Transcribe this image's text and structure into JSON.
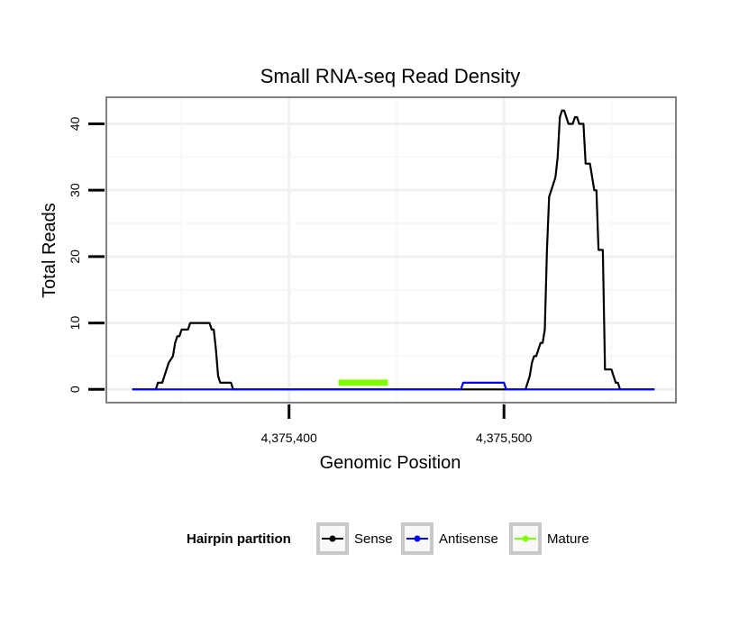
{
  "chart_data": {
    "type": "line",
    "title": "Small RNA-seq Read Density",
    "xlabel": "Genomic Position",
    "ylabel": "Total Reads",
    "xlim": [
      4375315,
      4375580
    ],
    "ylim": [
      -2,
      44
    ],
    "grid": true,
    "x_ticks": [
      {
        "value": 4375400,
        "label": "4,375,400"
      },
      {
        "value": 4375500,
        "label": "4,375,500"
      }
    ],
    "y_ticks": [
      {
        "value": 0,
        "label": "0"
      },
      {
        "value": 10,
        "label": "10"
      },
      {
        "value": 20,
        "label": "20"
      },
      {
        "value": 30,
        "label": "30"
      },
      {
        "value": 40,
        "label": "40"
      }
    ],
    "legend": {
      "title": "Hairpin partition",
      "position": "bottom"
    },
    "series": [
      {
        "name": "Sense",
        "color": "#000000",
        "x": [
          4375327,
          4375338,
          4375339,
          4375341,
          4375342,
          4375344,
          4375346,
          4375347,
          4375348,
          4375349,
          4375350,
          4375352,
          4375353,
          4375354,
          4375355,
          4375363,
          4375364,
          4375365,
          4375366,
          4375367,
          4375368,
          4375373,
          4375374,
          4375375,
          4375510,
          4375511,
          4375512,
          4375513,
          4375514,
          4375515,
          4375516,
          4375517,
          4375518,
          4375519,
          4375520,
          4375521,
          4375522,
          4375523,
          4375524,
          4375525,
          4375526,
          4375527,
          4375528,
          4375529,
          4375530,
          4375531,
          4375532,
          4375533,
          4375534,
          4375535,
          4375536,
          4375537,
          4375538,
          4375539,
          4375540,
          4375541,
          4375542,
          4375543,
          4375544,
          4375545,
          4375546,
          4375547,
          4375548,
          4375549,
          4375550,
          4375551,
          4375552,
          4375553,
          4375554,
          4375555,
          4375556,
          4375557,
          4375558,
          4375559,
          4375560,
          4375561,
          4375562,
          4375563,
          4375564,
          4375565,
          4375566,
          4375567,
          4375568,
          4375569,
          4375570
        ],
        "y": [
          0,
          0,
          1,
          1,
          2,
          4,
          5,
          7,
          8,
          8,
          9,
          9,
          9,
          10,
          10,
          10,
          9,
          9,
          6,
          2,
          1,
          1,
          0,
          0,
          0,
          1,
          2,
          4,
          5,
          5,
          6,
          7,
          7,
          9,
          21,
          29,
          30,
          31,
          32,
          35,
          41,
          42,
          42,
          41,
          40,
          40,
          40,
          41,
          41,
          40,
          40,
          40,
          34,
          34,
          34,
          32,
          30,
          30,
          21,
          21,
          21,
          3,
          3,
          3,
          3,
          2,
          1,
          1,
          0,
          0,
          0,
          0,
          0,
          0,
          0,
          0,
          0,
          0,
          0,
          0,
          0,
          0,
          0,
          0,
          0
        ]
      },
      {
        "name": "Antisense",
        "color": "#0000ff",
        "x": [
          4375327,
          4375480,
          4375481,
          4375500,
          4375501,
          4375570
        ],
        "y": [
          0,
          0,
          1,
          1,
          0,
          0
        ]
      },
      {
        "name": "Mature",
        "color": "#7fff00",
        "x": [
          4375423,
          4375446
        ],
        "y": [
          1,
          1
        ]
      }
    ]
  }
}
